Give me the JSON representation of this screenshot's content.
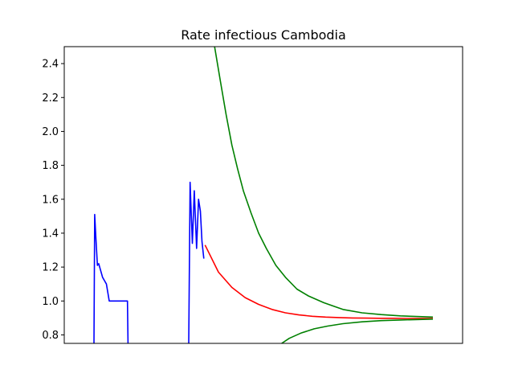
{
  "chart_data": {
    "type": "line",
    "title": "Rate infectious Cambodia",
    "xlabel": "",
    "ylabel": "",
    "x_ticks_visible": false,
    "ylim": [
      0.75,
      2.5
    ],
    "xlim": [
      -15.5,
      192.5
    ],
    "yticks": [
      0.8,
      1.0,
      1.2,
      1.4,
      1.6,
      1.8,
      2.0,
      2.2,
      2.4
    ],
    "ytick_labels": [
      "0.8",
      "1.0",
      "1.2",
      "1.4",
      "1.6",
      "1.8",
      "2.0",
      "2.2",
      "2.4"
    ],
    "grid": false,
    "legend": "none",
    "series": [
      {
        "color": "#0000ff",
        "segments": [
          {
            "x": [
              0,
              0.4,
              1,
              1.8,
              2.5,
              3.5,
              4.5,
              5.5,
              6.5,
              8,
              10,
              12,
              14,
              16,
              17.5,
              17.8
            ],
            "y": [
              0.75,
              1.51,
              1.38,
              1.21,
              1.22,
              1.18,
              1.14,
              1.12,
              1.1,
              1.0,
              1.0,
              1.0,
              1.0,
              1.0,
              1.0,
              0.75
            ]
          },
          {
            "x": [
              49.5,
              50.2,
              51.4,
              52.4,
              53.6,
              54.6,
              55.6,
              56.4,
              57.4
            ],
            "y": [
              0.75,
              1.7,
              1.34,
              1.65,
              1.31,
              1.6,
              1.53,
              1.35,
              1.25
            ]
          }
        ]
      },
      {
        "color": "#ff0000",
        "x": [
          58,
          65,
          72,
          79,
          86,
          93,
          100,
          107,
          114,
          121,
          128,
          135,
          142,
          149,
          156,
          163,
          170,
          177
        ],
        "y": [
          1.33,
          1.17,
          1.08,
          1.02,
          0.98,
          0.95,
          0.93,
          0.918,
          0.91,
          0.905,
          0.902,
          0.9,
          0.899,
          0.898,
          0.898,
          0.897,
          0.897,
          0.897
        ]
      },
      {
        "color": "#008000",
        "x": [
          63,
          66,
          69,
          72,
          75,
          78,
          82,
          86,
          90,
          95,
          100,
          106,
          112,
          120,
          130,
          140,
          150,
          160,
          170,
          177
        ],
        "y": [
          2.5,
          2.3,
          2.1,
          1.92,
          1.78,
          1.65,
          1.52,
          1.4,
          1.31,
          1.21,
          1.14,
          1.07,
          1.03,
          0.99,
          0.95,
          0.93,
          0.92,
          0.912,
          0.908,
          0.905
        ]
      },
      {
        "color": "#008000",
        "x": [
          98,
          102,
          108,
          115,
          122,
          130,
          140,
          150,
          160,
          170,
          177
        ],
        "y": [
          0.75,
          0.78,
          0.81,
          0.836,
          0.852,
          0.866,
          0.877,
          0.884,
          0.888,
          0.891,
          0.893
        ]
      }
    ]
  }
}
